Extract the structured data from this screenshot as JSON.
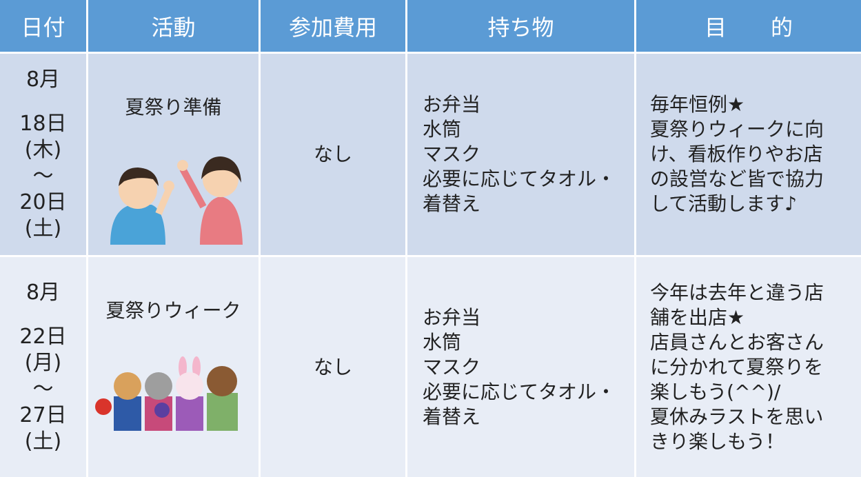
{
  "table": {
    "header": [
      "日付",
      "活動",
      "参加費用",
      "持ち物",
      "目　　的"
    ],
    "rows": [
      {
        "date": [
          "8月",
          "18日",
          "(木)",
          "〜",
          "20日",
          "(土)"
        ],
        "activity": "夏祭り準備",
        "cost": "なし",
        "items": [
          "お弁当",
          "水筒",
          "マスク",
          "必要に応じてタオル・",
          "着替え"
        ],
        "purpose": [
          "毎年恒例★",
          "夏祭りウィークに向",
          "け、看板作りやお店",
          "の設営など皆で協力",
          "して活動します♪"
        ]
      },
      {
        "date": [
          "8月",
          "22日",
          "(月)",
          "〜",
          "27日",
          "(土)"
        ],
        "activity": "夏祭りウィーク",
        "cost": "なし",
        "items": [
          "お弁当",
          "水筒",
          "マスク",
          "必要に応じてタオル・",
          "着替え"
        ],
        "purpose": [
          "今年は去年と違う店",
          "舗を出店★",
          "店員さんとお客さん",
          "に分かれて夏祭りを",
          "楽しもう(^^)/",
          "夏休みラストを思い",
          "きり楽しもう！"
        ]
      }
    ]
  }
}
